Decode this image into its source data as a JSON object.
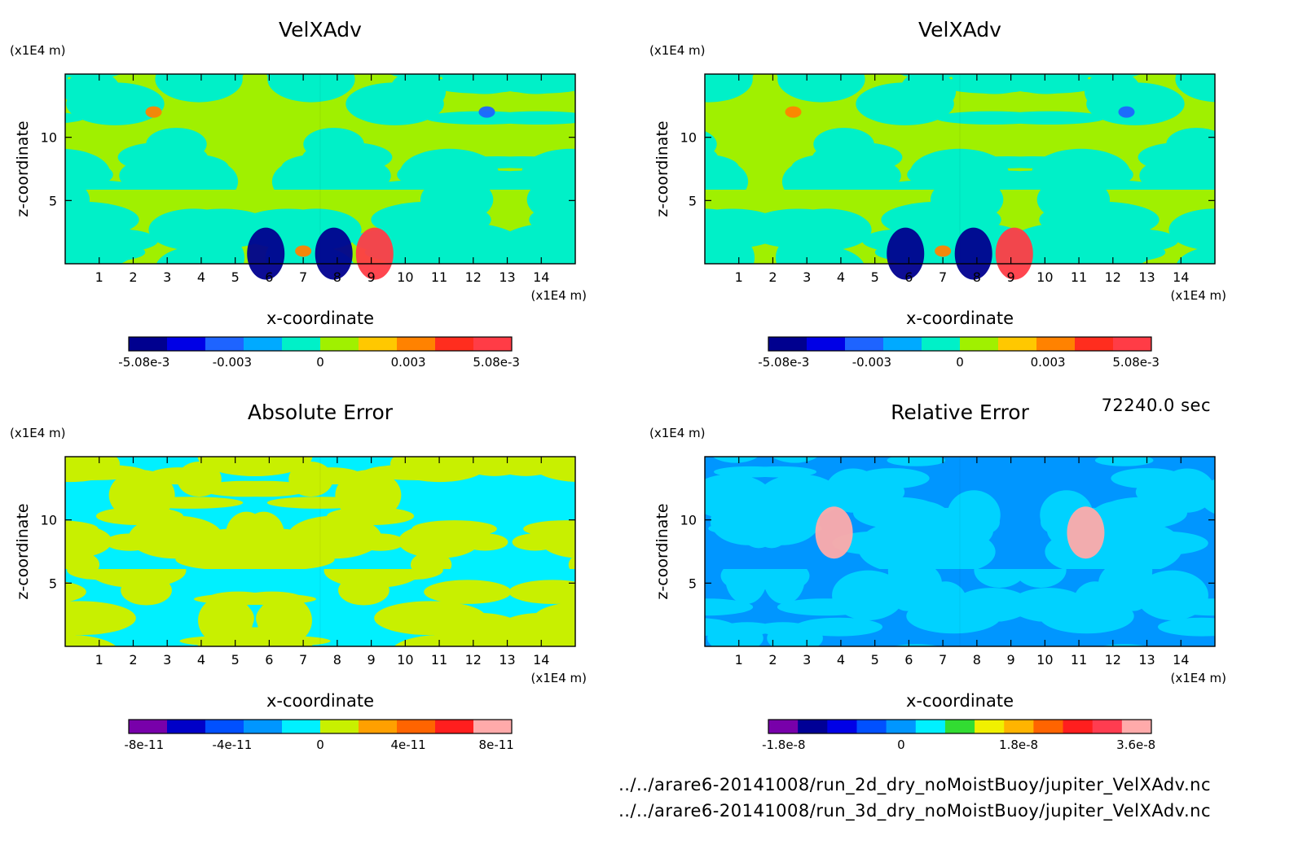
{
  "colors": {
    "velocity_levels": [
      "#00008f",
      "#0000e6",
      "#1e64ff",
      "#00aaff",
      "#00f0c8",
      "#a0f000",
      "#ffc800",
      "#ff8200",
      "#ff2d1e",
      "#ff3c46"
    ],
    "abs_error_levels": [
      "#7800aa",
      "#0000c8",
      "#0050ff",
      "#0096ff",
      "#00f0ff",
      "#c8f000",
      "#ffa000",
      "#ff6400",
      "#ff1e1e",
      "#ffaaaa"
    ],
    "rel_error_levels": [
      "#7800aa",
      "#000096",
      "#0000e6",
      "#0050ff",
      "#0096ff",
      "#00f0ff",
      "#32dc32",
      "#f0f000",
      "#ffb400",
      "#ff6400",
      "#ff1e1e",
      "#ff3c50",
      "#ffaaaa"
    ]
  },
  "chart_data": [
    {
      "type": "heatmap",
      "title": "VelXAdv",
      "xlabel": "x-coordinate",
      "ylabel": "z-coordinate",
      "x_unit": "(x1E4 m)",
      "y_unit": "(x1E4 m)",
      "x_ticks": [
        "1",
        "2",
        "3",
        "4",
        "5",
        "6",
        "7",
        "8",
        "9",
        "10",
        "11",
        "12",
        "13",
        "14"
      ],
      "y_ticks": [
        "5",
        "10"
      ],
      "xlim": [
        0,
        15
      ],
      "ylim": [
        0,
        15
      ],
      "colorbar": {
        "ticks": [
          "-5.08e-3",
          "-0.003",
          "0",
          "0.003",
          "5.08e-3"
        ],
        "palette": "velocity_levels"
      },
      "features": [
        {
          "x": 5.9,
          "z": 0.8,
          "value": -0.00508
        },
        {
          "x": 7.0,
          "z": 1.0,
          "value": 0.003
        },
        {
          "x": 7.9,
          "z": 0.8,
          "value": -0.00508
        },
        {
          "x": 9.1,
          "z": 0.8,
          "value": 0.00508
        },
        {
          "x": 2.6,
          "z": 12.0,
          "value": 0.003
        },
        {
          "x": 12.4,
          "z": 12.0,
          "value": -0.003
        }
      ]
    },
    {
      "type": "heatmap",
      "title": "VelXAdv",
      "xlabel": "x-coordinate",
      "ylabel": "z-coordinate",
      "x_unit": "(x1E4 m)",
      "y_unit": "(x1E4 m)",
      "x_ticks": [
        "1",
        "2",
        "3",
        "4",
        "5",
        "6",
        "7",
        "8",
        "9",
        "10",
        "11",
        "12",
        "13",
        "14"
      ],
      "y_ticks": [
        "5",
        "10"
      ],
      "xlim": [
        0,
        15
      ],
      "ylim": [
        0,
        15
      ],
      "colorbar": {
        "ticks": [
          "-5.08e-3",
          "-0.003",
          "0",
          "0.003",
          "5.08e-3"
        ],
        "palette": "velocity_levels"
      },
      "features": [
        {
          "x": 5.9,
          "z": 0.8,
          "value": -0.00508
        },
        {
          "x": 7.0,
          "z": 1.0,
          "value": 0.003
        },
        {
          "x": 7.9,
          "z": 0.8,
          "value": -0.00508
        },
        {
          "x": 9.1,
          "z": 0.8,
          "value": 0.00508
        },
        {
          "x": 2.6,
          "z": 12.0,
          "value": 0.003
        },
        {
          "x": 12.4,
          "z": 12.0,
          "value": -0.003
        }
      ]
    },
    {
      "type": "heatmap",
      "title": "Absolute Error",
      "xlabel": "x-coordinate",
      "ylabel": "z-coordinate",
      "x_unit": "(x1E4 m)",
      "y_unit": "(x1E4 m)",
      "x_ticks": [
        "1",
        "2",
        "3",
        "4",
        "5",
        "6",
        "7",
        "8",
        "9",
        "10",
        "11",
        "12",
        "13",
        "14"
      ],
      "y_ticks": [
        "5",
        "10"
      ],
      "xlim": [
        0,
        15
      ],
      "ylim": [
        0,
        15
      ],
      "colorbar": {
        "ticks": [
          "-8e-11",
          "-4e-11",
          "0",
          "4e-11",
          "8e-11"
        ],
        "palette": "abs_error_levels"
      },
      "features": []
    },
    {
      "type": "heatmap",
      "title": "Relative Error",
      "xlabel": "x-coordinate",
      "ylabel": "z-coordinate",
      "x_unit": "(x1E4 m)",
      "y_unit": "(x1E4 m)",
      "x_ticks": [
        "1",
        "2",
        "3",
        "4",
        "5",
        "6",
        "7",
        "8",
        "9",
        "10",
        "11",
        "12",
        "13",
        "14"
      ],
      "y_ticks": [
        "5",
        "10"
      ],
      "xlim": [
        0,
        15
      ],
      "ylim": [
        0,
        15
      ],
      "colorbar": {
        "ticks": [
          "-1.8e-8",
          "0",
          "1.8e-8",
          "3.6e-8"
        ],
        "palette": "rel_error_levels"
      },
      "features": [
        {
          "x": 3.8,
          "z": 9.0,
          "value": 3.6e-08
        },
        {
          "x": 11.2,
          "z": 9.0,
          "value": 3.6e-08
        }
      ]
    }
  ],
  "footer": {
    "time": "72240.0 sec",
    "file1": "../../arare6-20141008/run_2d_dry_noMoistBuoy/jupiter_VelXAdv.nc",
    "file2": "../../arare6-20141008/run_3d_dry_noMoistBuoy/jupiter_VelXAdv.nc"
  }
}
